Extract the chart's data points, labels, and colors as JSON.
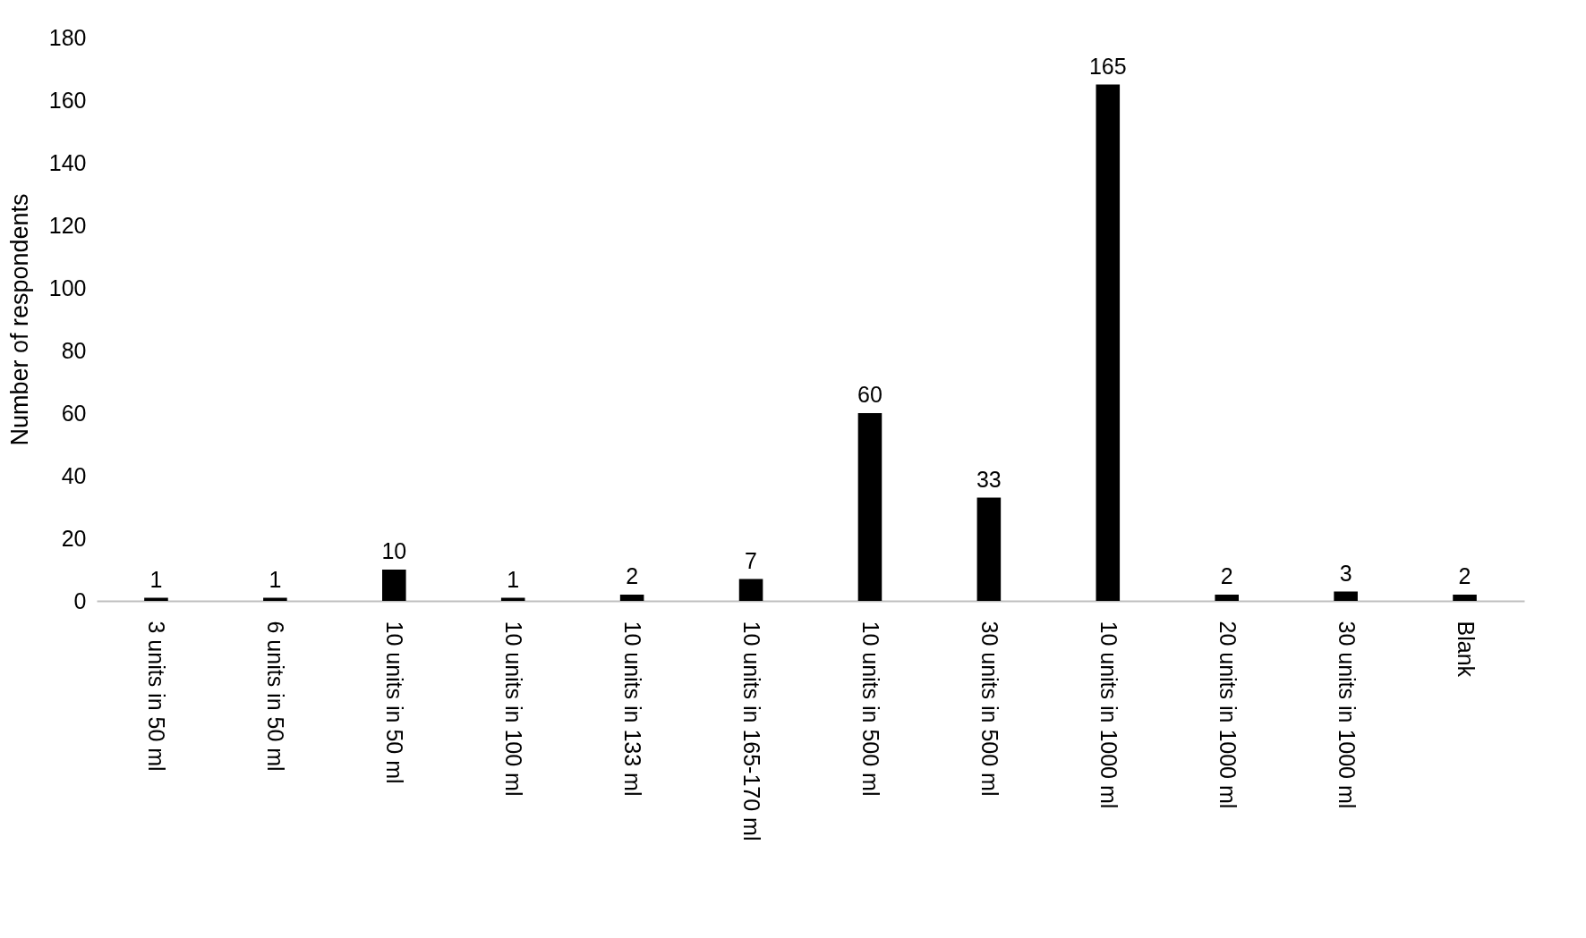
{
  "chart_data": {
    "type": "bar",
    "ylabel": "Number of respondents",
    "categories": [
      "3 units in 50 ml",
      "6 units in 50 ml",
      "10 units in 50 ml",
      "10 units in 100 ml",
      "10 units in 133 ml",
      "10 units in 165-170 ml",
      "10 units in 500 ml",
      "30 units in 500 ml",
      "10 units in 1000 ml",
      "20 units in 1000 ml",
      "30 units in 1000 ml",
      "Blank"
    ],
    "values": [
      1,
      1,
      10,
      1,
      2,
      7,
      60,
      33,
      165,
      2,
      3,
      2
    ],
    "color": "#000000",
    "ylim": [
      0,
      180
    ],
    "yticks": [
      0,
      20,
      40,
      60,
      80,
      100,
      120,
      140,
      160,
      180
    ],
    "grid": false,
    "data_labels": true
  }
}
